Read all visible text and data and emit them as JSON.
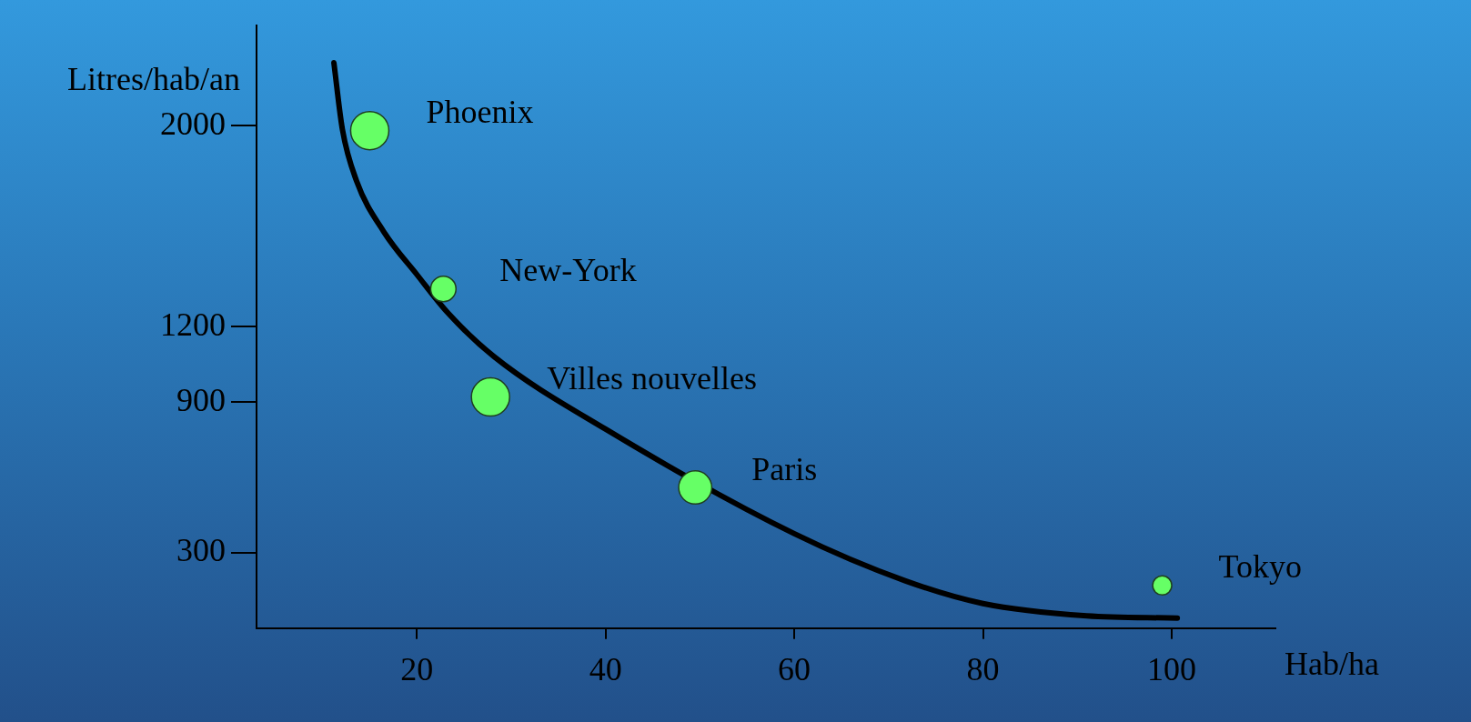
{
  "chart_data": {
    "type": "bubble",
    "xlabel": "Hab/ha",
    "ylabel": "Litres/hab/an",
    "xlim": [
      3,
      111
    ],
    "ylim": [
      0,
      2400
    ],
    "xticks": [
      20,
      40,
      60,
      80,
      100
    ],
    "yticks": [
      300,
      900,
      1200,
      2000
    ],
    "grid": false,
    "legend": false,
    "series": [
      {
        "type": "bubble",
        "marker": "circle",
        "color": "#66ff66",
        "x": [
          15,
          22.8,
          27.8,
          49.5,
          99
        ],
        "values": [
          1980,
          1350,
          920,
          560,
          170
        ],
        "sizes": [
          1,
          0.44,
          1,
          0.75,
          0.25
        ]
      },
      {
        "type": "line",
        "color": "#000000",
        "x": [
          11.2,
          12.1,
          13.6,
          16.5,
          20,
          23.3,
          28.2,
          40,
          60,
          71.8,
          80,
          91,
          100.6
        ],
        "values": [
          2250,
          1985,
          1780,
          1577,
          1407,
          1254,
          1080,
          792,
          376,
          188,
          98,
          49,
          40
        ]
      }
    ],
    "annotations": [
      {
        "text": "Phoenix",
        "x": 15,
        "y": 1980
      },
      {
        "text": "New-York",
        "x": 22.8,
        "y": 1350
      },
      {
        "text": "Villes nouvelles",
        "x": 27.8,
        "y": 920
      },
      {
        "text": "Paris",
        "x": 49.5,
        "y": 560
      },
      {
        "text": "Tokyo",
        "x": 99,
        "y": 170
      }
    ]
  }
}
